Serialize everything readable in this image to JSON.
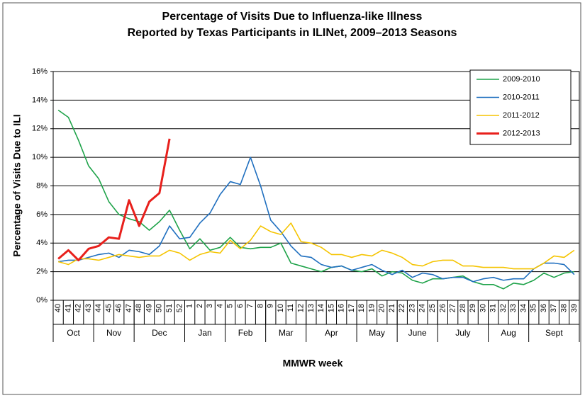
{
  "chart_data": {
    "type": "line",
    "title": "Percentage of Visits Due to Influenza-like Illness",
    "subtitle": "Reported by Texas Participants in ILINet, 2009–2013 Seasons",
    "y_label": "Percentage of Visits Due to ILI",
    "x_label": "MMWR week",
    "categories": [
      "40",
      "41",
      "42",
      "43",
      "44",
      "45",
      "46",
      "47",
      "48",
      "49",
      "50",
      "51",
      "52",
      "1",
      "2",
      "3",
      "4",
      "5",
      "6",
      "7",
      "8",
      "9",
      "10",
      "11",
      "12",
      "13",
      "14",
      "15",
      "16",
      "17",
      "18",
      "19",
      "20",
      "21",
      "22",
      "23",
      "24",
      "25",
      "26",
      "27",
      "28",
      "29",
      "30",
      "31",
      "32",
      "33",
      "34",
      "35",
      "36",
      "37",
      "38",
      "39"
    ],
    "month_labels": [
      "Oct",
      "Nov",
      "Dec",
      "Jan",
      "Feb",
      "Mar",
      "Apr",
      "May",
      "June",
      "July",
      "Aug",
      "Sept"
    ],
    "month_weeks": [
      4,
      4,
      5,
      4,
      4,
      4,
      5,
      4,
      4,
      5,
      4,
      5
    ],
    "ylim": [
      0,
      16
    ],
    "yticks": [
      {
        "value": 0,
        "label": "0%"
      },
      {
        "value": 2,
        "label": "2%"
      },
      {
        "value": 4,
        "label": "4%"
      },
      {
        "value": 6,
        "label": "6%"
      },
      {
        "value": 8,
        "label": "8%"
      },
      {
        "value": 10,
        "label": "10%"
      },
      {
        "value": 12,
        "label": "12%"
      },
      {
        "value": 14,
        "label": "14%"
      },
      {
        "value": 16,
        "label": "16%"
      }
    ],
    "grid": true,
    "legend": "top-right",
    "series": [
      {
        "name": "2009-2010",
        "color": "#1fa34a",
        "values": [
          13.3,
          12.8,
          11.2,
          9.4,
          8.5,
          6.9,
          6.0,
          5.7,
          5.5,
          4.9,
          5.5,
          6.3,
          4.9,
          3.6,
          4.3,
          3.5,
          3.7,
          4.4,
          3.7,
          3.6,
          3.7,
          3.7,
          4.0,
          2.6,
          2.4,
          2.2,
          2.0,
          2.3,
          2.4,
          2.1,
          2.0,
          2.2,
          1.7,
          2.0,
          1.9,
          1.4,
          1.2,
          1.5,
          1.5,
          1.6,
          1.7,
          1.3,
          1.1,
          1.1,
          0.8,
          1.2,
          1.1,
          1.4,
          1.9,
          1.6,
          1.9,
          2.0
        ]
      },
      {
        "name": "2010-2011",
        "color": "#1f6fbf",
        "values": [
          2.7,
          2.8,
          2.8,
          3.0,
          3.2,
          3.3,
          3.0,
          3.5,
          3.4,
          3.2,
          3.8,
          5.2,
          4.3,
          4.4,
          5.4,
          6.1,
          7.4,
          8.3,
          8.1,
          10.0,
          8.0,
          5.6,
          4.8,
          3.8,
          3.1,
          3.0,
          2.5,
          2.3,
          2.4,
          2.1,
          2.3,
          2.5,
          2.1,
          1.8,
          2.1,
          1.6,
          1.9,
          1.8,
          1.5,
          1.6,
          1.6,
          1.3,
          1.5,
          1.6,
          1.4,
          1.5,
          1.5,
          2.2,
          2.6,
          2.6,
          2.5,
          1.8
        ]
      },
      {
        "name": "2011-2012",
        "color": "#f5c400",
        "values": [
          2.7,
          2.5,
          2.9,
          2.9,
          2.8,
          3.0,
          3.2,
          3.1,
          3.0,
          3.1,
          3.1,
          3.5,
          3.3,
          2.8,
          3.2,
          3.4,
          3.3,
          4.2,
          3.6,
          4.2,
          5.2,
          4.8,
          4.6,
          5.4,
          4.1,
          4.0,
          3.7,
          3.2,
          3.2,
          3.0,
          3.2,
          3.1,
          3.5,
          3.3,
          3.0,
          2.5,
          2.4,
          2.7,
          2.8,
          2.8,
          2.4,
          2.4,
          2.3,
          2.3,
          2.3,
          2.2,
          2.2,
          2.2,
          2.6,
          3.1,
          3.0,
          3.5
        ]
      },
      {
        "name": "2012-2013",
        "color": "#e8201c",
        "width": 3,
        "values": [
          2.9,
          3.5,
          2.8,
          3.6,
          3.8,
          4.4,
          4.3,
          7.0,
          5.2,
          6.9,
          7.5,
          11.3,
          null,
          null,
          null,
          null,
          null,
          null,
          null,
          null,
          null,
          null,
          null,
          null,
          null,
          null,
          null,
          null,
          null,
          null,
          null,
          null,
          null,
          null,
          null,
          null,
          null,
          null,
          null,
          null,
          null,
          null,
          null,
          null,
          null,
          null,
          null,
          null,
          null,
          null,
          null,
          null
        ]
      }
    ]
  }
}
